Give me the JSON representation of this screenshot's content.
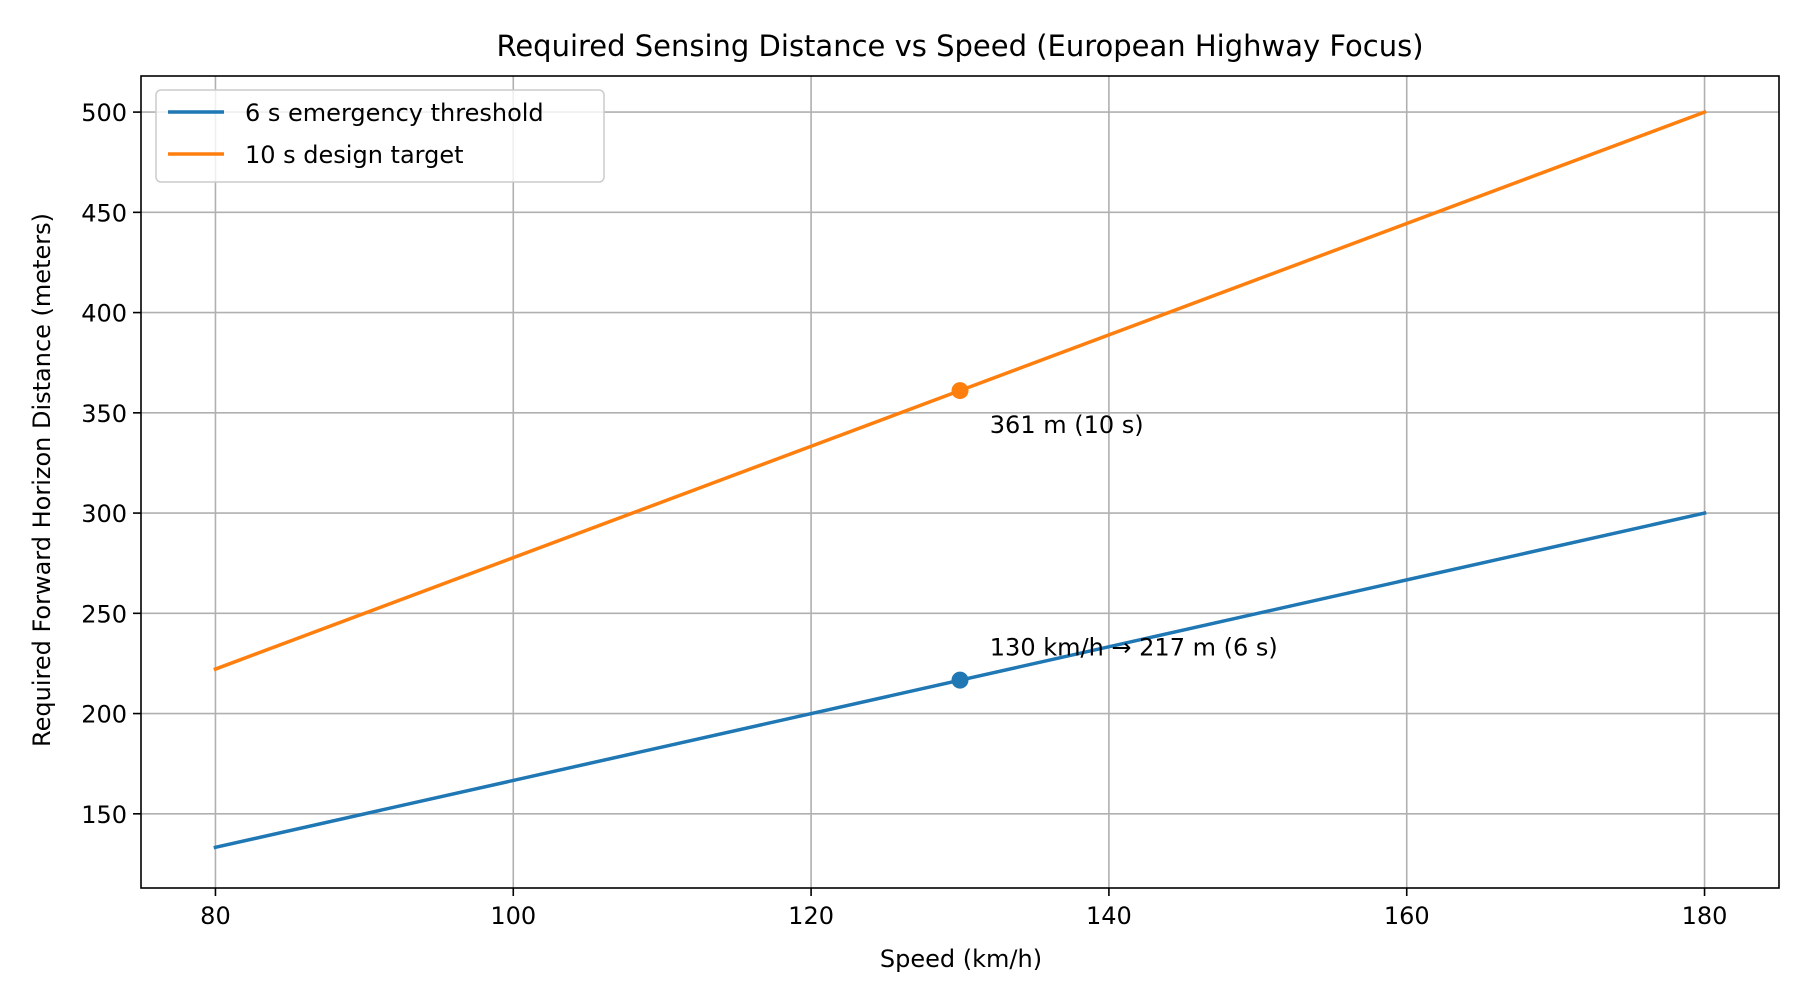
{
  "chart_data": {
    "type": "line",
    "title": "Required Sensing Distance vs Speed (European Highway Focus)",
    "xlabel": "Speed (km/h)",
    "ylabel": "Required Forward Horizon Distance (meters)",
    "xlim": [
      75,
      185
    ],
    "ylim": [
      113,
      518
    ],
    "xticks": [
      80,
      100,
      120,
      140,
      160,
      180
    ],
    "yticks": [
      150,
      200,
      250,
      300,
      350,
      400,
      450,
      500
    ],
    "grid": true,
    "legend_position": "top-left",
    "series": [
      {
        "name": "6 s emergency threshold",
        "color": "#1f77b4",
        "x": [
          80,
          180
        ],
        "y": [
          133.3,
          300
        ]
      },
      {
        "name": "10 s design target",
        "color": "#ff7f0e",
        "x": [
          80,
          180
        ],
        "y": [
          222.2,
          500
        ]
      }
    ],
    "markers": [
      {
        "series": "6 s emergency threshold",
        "x": 130,
        "y": 216.7,
        "color": "#1f77b4"
      },
      {
        "series": "10 s design target",
        "x": 130,
        "y": 361.1,
        "color": "#ff7f0e"
      }
    ],
    "annotations": [
      {
        "text": "130 km/h → 217 m (6 s)",
        "x": 132,
        "y": 229
      },
      {
        "text": "361 m (10 s)",
        "x": 132,
        "y": 340
      }
    ]
  }
}
